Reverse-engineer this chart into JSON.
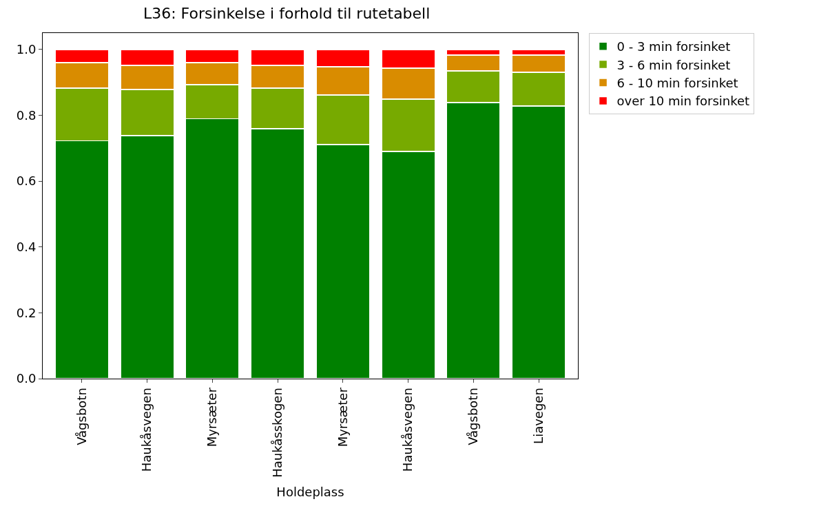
{
  "chart_data": {
    "type": "bar",
    "stacked": true,
    "title": "L36: Forsinkelse i forhold til rutetabell",
    "xlabel": "Holdeplass",
    "categories": [
      "Vågsbotn",
      "Haukåsvegen",
      "Myrsæter",
      "Haukåsskogen",
      "Myrsæter",
      "Haukåsvegen",
      "Vågsbotn",
      "Liavegen"
    ],
    "series": [
      {
        "name": "0 - 3 min forsinket",
        "color": "#008000",
        "values": [
          0.723,
          0.738,
          0.79,
          0.759,
          0.711,
          0.69,
          0.839,
          0.828
        ]
      },
      {
        "name": "3 - 6 min forsinket",
        "color": "#77aa00",
        "values": [
          0.16,
          0.14,
          0.103,
          0.124,
          0.151,
          0.159,
          0.096,
          0.103
        ]
      },
      {
        "name": "6 - 10 min forsinket",
        "color": "#d98c00",
        "values": [
          0.077,
          0.074,
          0.067,
          0.069,
          0.086,
          0.094,
          0.048,
          0.052
        ]
      },
      {
        "name": "over 10 min forsinket",
        "color": "#ff0000",
        "values": [
          0.04,
          0.048,
          0.04,
          0.048,
          0.052,
          0.057,
          0.017,
          0.017
        ]
      }
    ],
    "ylim": [
      0,
      1.05
    ],
    "yticks": [
      {
        "value": 0,
        "label": "0.0"
      },
      0.2,
      0.4,
      0.6,
      0.8,
      {
        "value": 1,
        "label": "1.0"
      }
    ],
    "legend": "top right"
  }
}
